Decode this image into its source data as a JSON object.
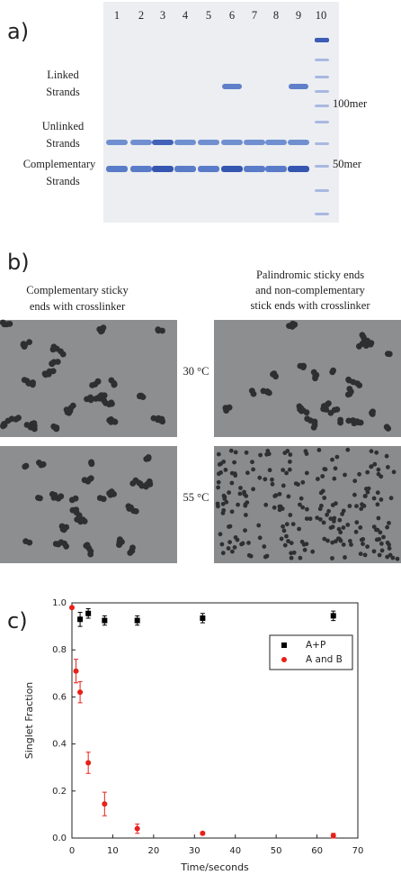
{
  "panel_a": {
    "label": "a)",
    "lanes": [
      "1",
      "2",
      "3",
      "4",
      "5",
      "6",
      "7",
      "8",
      "9",
      "10"
    ],
    "band_labels": [
      [
        "Linked",
        "Strands"
      ],
      [
        "Unlinked",
        "Strands"
      ],
      [
        "Complementary",
        "Strands"
      ]
    ],
    "ladder_labels": [
      "100mer",
      "50mer"
    ]
  },
  "panel_b": {
    "label": "b)",
    "left_caption": [
      "Complementary sticky",
      "ends with crosslinker"
    ],
    "right_caption": [
      "Palindromic sticky ends",
      "and non-complementary",
      "stick ends with crosslinker"
    ],
    "temperatures": [
      "30 °C",
      "55 °C"
    ]
  },
  "panel_c": {
    "label": "c)"
  },
  "chart_data": {
    "type": "scatter",
    "x_label": "Time/seconds",
    "y_label": "Singlet Fraction",
    "xlim": [
      0,
      70
    ],
    "ylim": [
      0,
      1.0
    ],
    "xticks": [
      0,
      10,
      20,
      30,
      40,
      50,
      60,
      70
    ],
    "yticks": [
      {
        "value": 0,
        "label": "0.0"
      },
      0.2,
      0.4,
      0.6,
      0.8,
      {
        "value": 1,
        "label": "1.0"
      }
    ],
    "legend": "upper right",
    "series": [
      {
        "name": "A+P",
        "color": "#000000",
        "marker": "square",
        "x": [
          2,
          4,
          8,
          16,
          32,
          64
        ],
        "values": [
          0.93,
          0.955,
          0.925,
          0.925,
          0.935,
          0.945
        ],
        "errors": [
          0.03,
          0.02,
          0.02,
          0.02,
          0.02,
          0.02
        ]
      },
      {
        "name": "A and B",
        "color": "#e8201a",
        "marker": "circle",
        "x": [
          0,
          1,
          2,
          4,
          8,
          16,
          32,
          64
        ],
        "values": [
          0.98,
          0.71,
          0.62,
          0.32,
          0.145,
          0.04,
          0.02,
          0.01
        ],
        "errors": [
          0,
          0.05,
          0.045,
          0.045,
          0.05,
          0.02,
          0.005,
          0.01
        ]
      }
    ]
  }
}
